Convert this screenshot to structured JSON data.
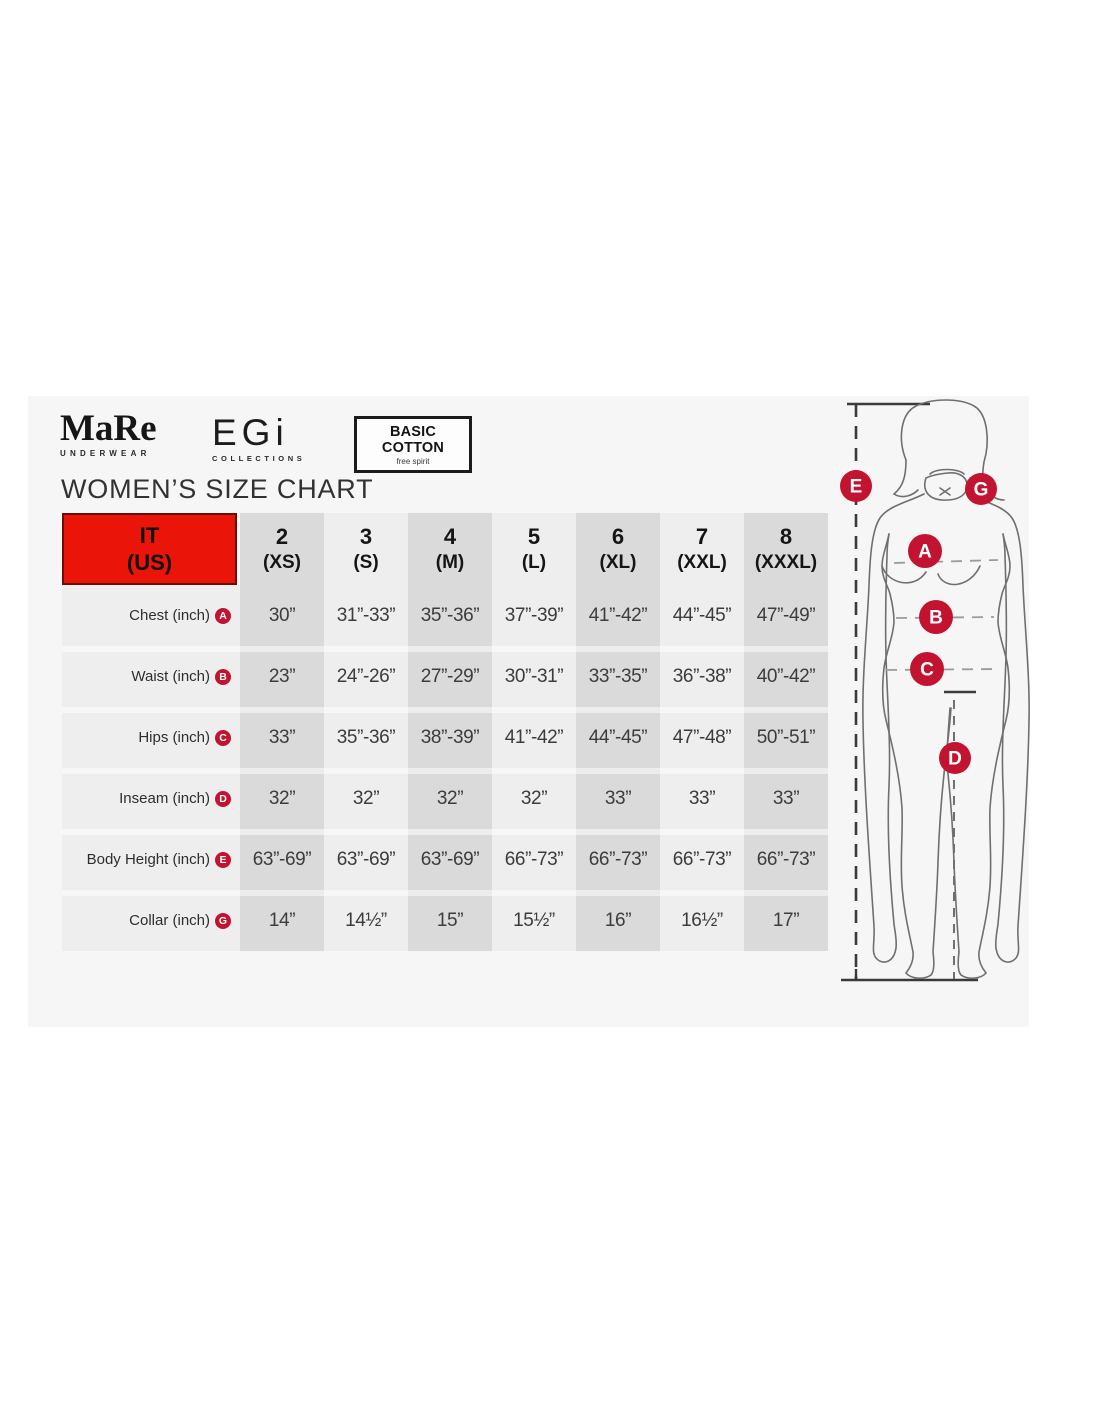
{
  "brand_logos": {
    "mare": {
      "name": "MaRe",
      "subtitle": "UNDERWEAR"
    },
    "egi": {
      "name": "EGi",
      "subtitle": "COLLECTIONS"
    },
    "basic_cotton": {
      "name": "BASIC COTTON",
      "subtitle": "free spirit"
    }
  },
  "title": "WOMEN’S SIZE CHART",
  "size_table": {
    "corner": {
      "line1": "IT",
      "line2": "(US)"
    },
    "columns": [
      {
        "size": "2",
        "label": "(XS)"
      },
      {
        "size": "3",
        "label": "(S)"
      },
      {
        "size": "4",
        "label": "(M)"
      },
      {
        "size": "5",
        "label": "(L)"
      },
      {
        "size": "6",
        "label": "(XL)"
      },
      {
        "size": "7",
        "label": "(XXL)"
      },
      {
        "size": "8",
        "label": "(XXXL)"
      }
    ],
    "rows": [
      {
        "label": "Chest (inch)",
        "marker": "A",
        "values": [
          "30”",
          "31”-33”",
          "35”-36”",
          "37”-39”",
          "41”-42”",
          "44”-45”",
          "47”-49”"
        ]
      },
      {
        "label": "Waist (inch)",
        "marker": "B",
        "values": [
          "23”",
          "24”-26”",
          "27”-29”",
          "30”-31”",
          "33”-35”",
          "36”-38”",
          "40”-42”"
        ]
      },
      {
        "label": "Hips (inch)",
        "marker": "C",
        "values": [
          "33”",
          "35”-36”",
          "38”-39”",
          "41”-42”",
          "44”-45”",
          "47”-48”",
          "50”-51”"
        ]
      },
      {
        "label": "Inseam (inch)",
        "marker": "D",
        "values": [
          "32”",
          "32”",
          "32”",
          "32”",
          "33”",
          "33”",
          "33”"
        ]
      },
      {
        "label": "Body Height (inch)",
        "marker": "E",
        "values": [
          "63”-69”",
          "63”-69”",
          "63”-69”",
          "66”-73”",
          "66”-73”",
          "66”-73”",
          "66”-73”"
        ]
      },
      {
        "label": "Collar (inch)",
        "marker": "G",
        "values": [
          "14”",
          "14½”",
          "15”",
          "15½”",
          "16”",
          "16½”",
          "17”"
        ]
      }
    ]
  },
  "figure": {
    "markers": [
      "E",
      "G",
      "A",
      "B",
      "C",
      "D"
    ]
  },
  "colors": {
    "header_red": "#ea1508",
    "marker_red": "#c21331",
    "panel_bg": "#f7f6f6",
    "stripe_dark": "#dbdada",
    "stripe_light": "#efeeee"
  }
}
